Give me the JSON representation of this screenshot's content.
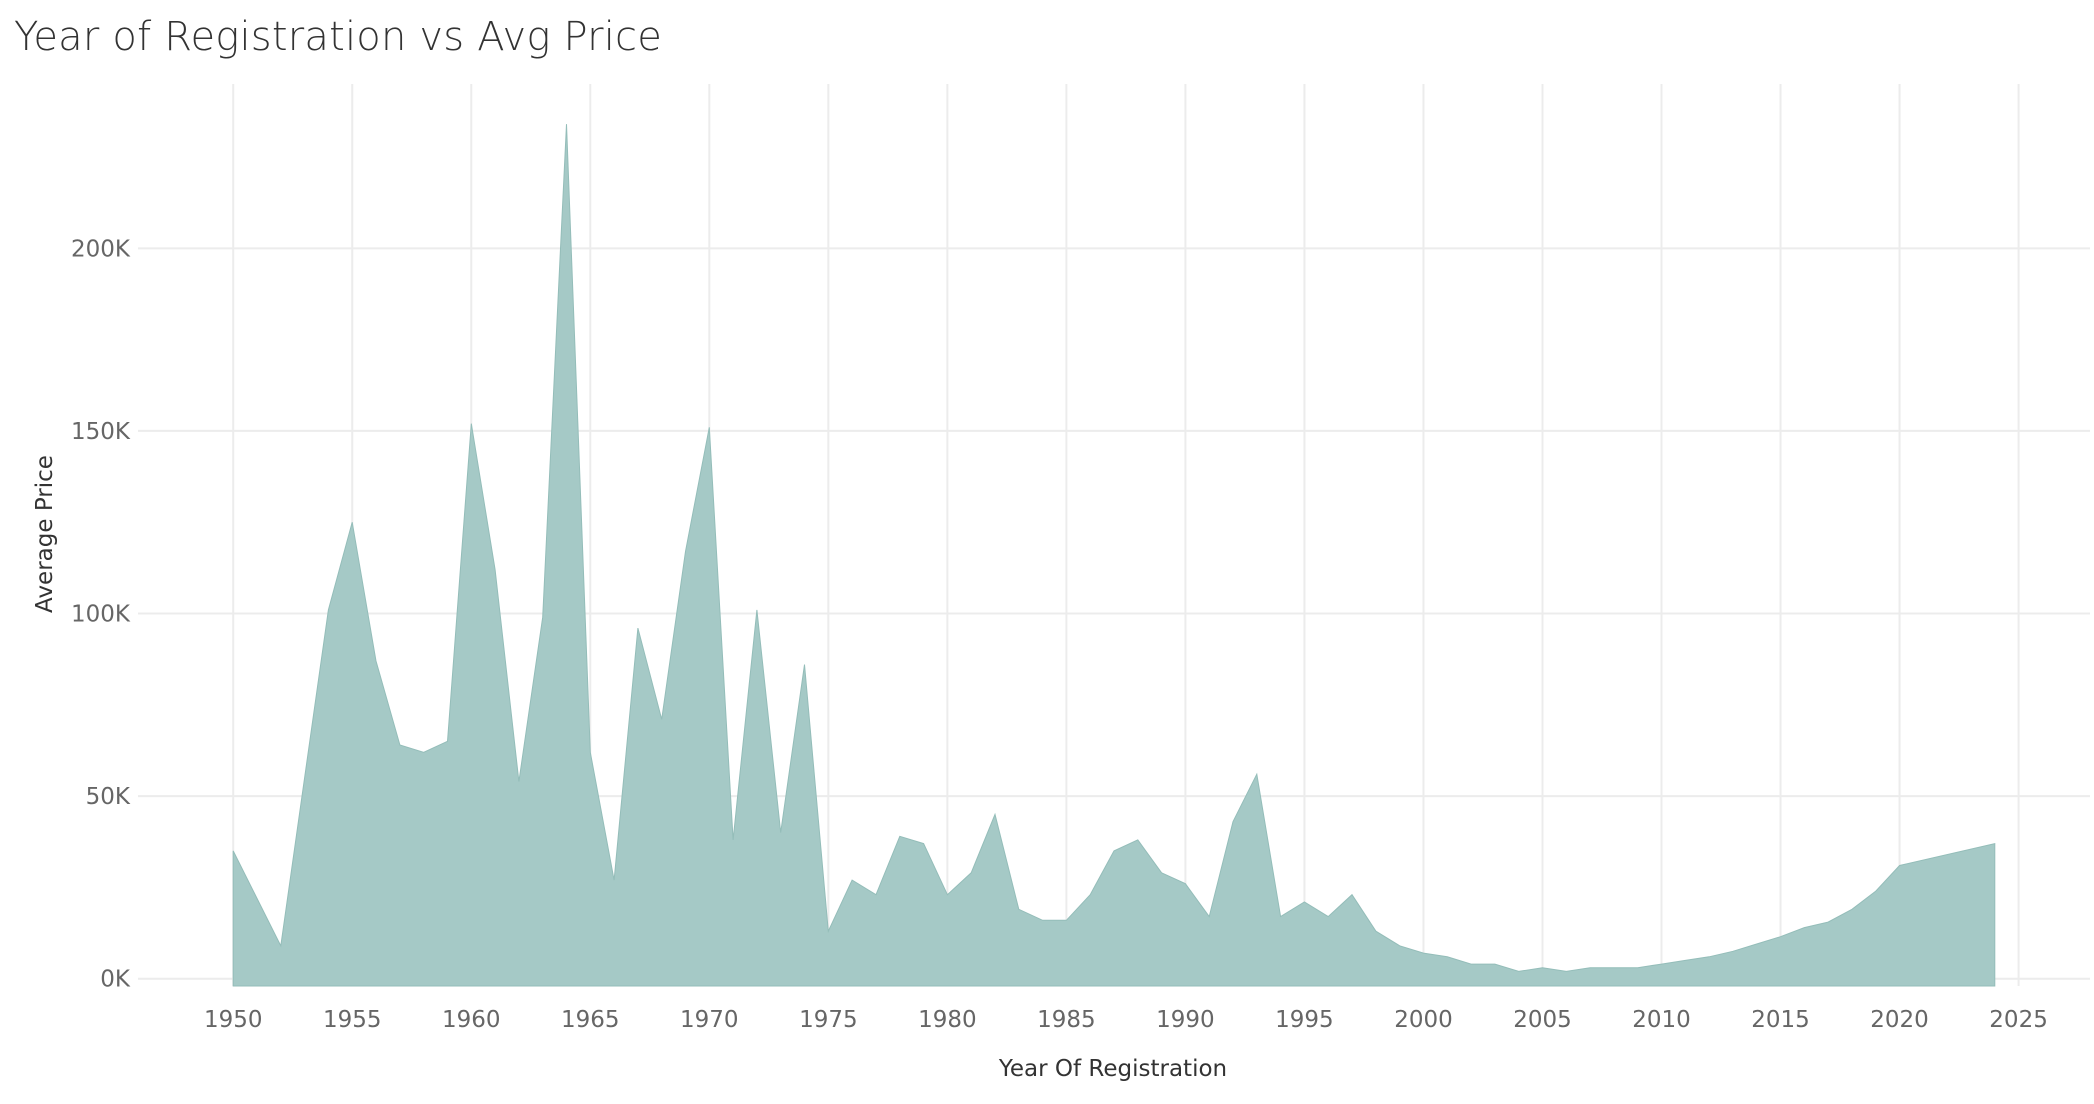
{
  "chart_data": {
    "type": "area",
    "title": "Year of Registration vs Avg Price",
    "xlabel": "Year Of Registration",
    "ylabel": "Average Price",
    "xlim": [
      1946,
      2028
    ],
    "ylim": [
      -2000,
      245000
    ],
    "x_ticks": [
      1950,
      1955,
      1960,
      1965,
      1970,
      1975,
      1980,
      1985,
      1990,
      1995,
      2000,
      2005,
      2010,
      2015,
      2020,
      2025
    ],
    "y_ticks": [
      {
        "value": 0,
        "label": "0K"
      },
      {
        "value": 50000,
        "label": "50K"
      },
      {
        "value": 100000,
        "label": "100K"
      },
      {
        "value": 150000,
        "label": "150K"
      },
      {
        "value": 200000,
        "label": "200K"
      }
    ],
    "grid": true,
    "color": "#a5c9c6",
    "x": [
      1950,
      1951,
      1952,
      1953,
      1954,
      1955,
      1956,
      1957,
      1958,
      1959,
      1960,
      1961,
      1962,
      1963,
      1964,
      1965,
      1966,
      1967,
      1968,
      1969,
      1970,
      1971,
      1972,
      1973,
      1974,
      1975,
      1976,
      1977,
      1978,
      1979,
      1980,
      1981,
      1982,
      1983,
      1984,
      1985,
      1986,
      1987,
      1988,
      1989,
      1990,
      1991,
      1992,
      1993,
      1994,
      1995,
      1996,
      1997,
      1998,
      1999,
      2000,
      2001,
      2002,
      2003,
      2004,
      2005,
      2006,
      2007,
      2008,
      2009,
      2010,
      2011,
      2012,
      2013,
      2014,
      2015,
      2016,
      2017,
      2018,
      2019,
      2020,
      2024
    ],
    "values": [
      35000,
      22000,
      9000,
      55000,
      101000,
      125000,
      87000,
      64000,
      62000,
      65000,
      152000,
      112000,
      54000,
      99000,
      234000,
      62000,
      27000,
      96000,
      71000,
      117000,
      151000,
      38000,
      101000,
      40000,
      86000,
      13000,
      27000,
      23000,
      39000,
      37000,
      23000,
      29000,
      45000,
      19000,
      16000,
      16000,
      23000,
      35000,
      38000,
      29000,
      26000,
      17000,
      43000,
      56000,
      17000,
      21000,
      17000,
      23000,
      13000,
      9000,
      7000,
      6000,
      4000,
      4000,
      2000,
      3000,
      2000,
      3000,
      3000,
      3000,
      4000,
      5000,
      6000,
      7500,
      9500,
      11500,
      14000,
      15500,
      19000,
      24000,
      31000,
      37000
    ]
  }
}
